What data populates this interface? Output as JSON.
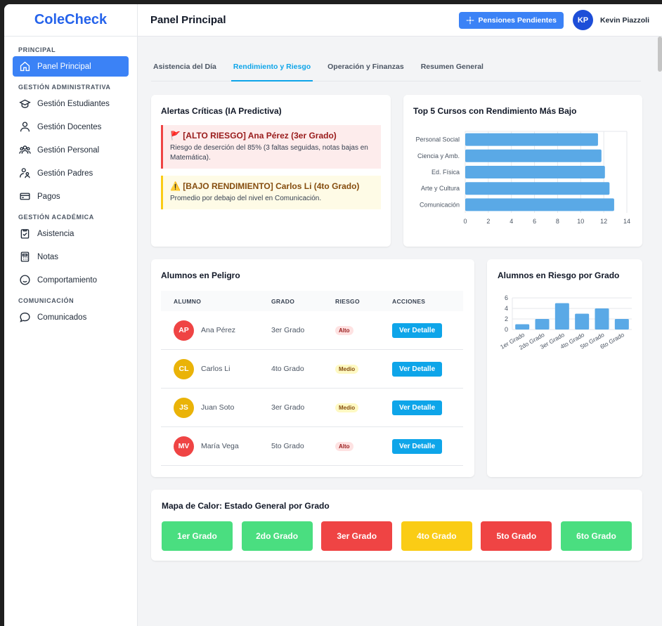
{
  "app": {
    "brand": "ColeCheck"
  },
  "sidebar": {
    "sections": [
      {
        "title": "PRINCIPAL",
        "items": [
          {
            "label": "Panel Principal",
            "icon": "home-icon",
            "active": true
          }
        ]
      },
      {
        "title": "GESTIÓN ADMINISTRATIVA",
        "items": [
          {
            "label": "Gestión Estudiantes",
            "icon": "school-icon"
          },
          {
            "label": "Gestión Docentes",
            "icon": "user-icon"
          },
          {
            "label": "Gestión Personal",
            "icon": "users-icon"
          },
          {
            "label": "Gestión Padres",
            "icon": "parent-icon"
          },
          {
            "label": "Pagos",
            "icon": "credit-card-icon"
          }
        ]
      },
      {
        "title": "GESTIÓN ACADÉMICA",
        "items": [
          {
            "label": "Asistencia",
            "icon": "clipboard-check-icon"
          },
          {
            "label": "Notas",
            "icon": "calculator-icon"
          },
          {
            "label": "Comportamiento",
            "icon": "smile-icon"
          }
        ]
      },
      {
        "title": "COMUNICACIÓN",
        "items": [
          {
            "label": "Comunicados",
            "icon": "chat-icon"
          }
        ]
      }
    ]
  },
  "header": {
    "title": "Panel Principal",
    "pending_button": "Pensiones Pendientes",
    "user_initials": "KP",
    "user_name": "Kevin Piazzoli"
  },
  "tabs": [
    {
      "label": "Asistencia del Día",
      "active": false
    },
    {
      "label": "Rendimiento y Riesgo",
      "active": true
    },
    {
      "label": "Operación y Finanzas",
      "active": false
    },
    {
      "label": "Resumen General",
      "active": false
    }
  ],
  "alerts": {
    "title": "Alertas Críticas (IA Predictiva)",
    "items": [
      {
        "level": "high",
        "icon": "🚩",
        "title": "[ALTO RIESGO] Ana Pérez (3er Grado)",
        "body": "Riesgo de deserción del 85% (3 faltas seguidas, notas bajas en Matemática)."
      },
      {
        "level": "low",
        "icon": "⚠️",
        "title": "[BAJO RENDIMIENTO] Carlos Li (4to Grado)",
        "body": "Promedio por debajo del nivel en Comunicación."
      }
    ]
  },
  "students": {
    "title": "Alumnos en Peligro",
    "columns": [
      "ALUMNO",
      "GRADO",
      "RIESGO",
      "ACCIONES"
    ],
    "rows": [
      {
        "initials": "AP",
        "name": "Ana Pérez",
        "grade": "3er Grado",
        "risk": "Alto",
        "avatar_color": "#ef4444",
        "action": "Ver Detalle"
      },
      {
        "initials": "CL",
        "name": "Carlos Li",
        "grade": "4to Grado",
        "risk": "Medio",
        "avatar_color": "#eab308",
        "action": "Ver Detalle"
      },
      {
        "initials": "JS",
        "name": "Juan Soto",
        "grade": "3er Grado",
        "risk": "Medio",
        "avatar_color": "#eab308",
        "action": "Ver Detalle"
      },
      {
        "initials": "MV",
        "name": "María Vega",
        "grade": "5to Grado",
        "risk": "Alto",
        "avatar_color": "#ef4444",
        "action": "Ver Detalle"
      }
    ]
  },
  "heatmap": {
    "title": "Mapa de Calor: Estado General por Grado",
    "cells": [
      {
        "label": "1er Grado",
        "color": "#4ade80"
      },
      {
        "label": "2do Grado",
        "color": "#4ade80"
      },
      {
        "label": "3er Grado",
        "color": "#ef4444"
      },
      {
        "label": "4to Grado",
        "color": "#facc15"
      },
      {
        "label": "5to Grado",
        "color": "#ef4444"
      },
      {
        "label": "6to Grado",
        "color": "#4ade80"
      }
    ]
  },
  "chart_data": [
    {
      "type": "bar",
      "orientation": "horizontal",
      "title": "Top 5 Cursos con Rendimiento Más Bajo",
      "categories": [
        "Personal Social",
        "Ciencia y Amb.",
        "Ed. Física",
        "Arte y Cultura",
        "Comunicación"
      ],
      "values": [
        11.5,
        11.8,
        12.1,
        12.5,
        12.9
      ],
      "xlim": [
        0,
        14
      ],
      "xticks": [
        "0",
        "2",
        "4",
        "6",
        "8",
        "10",
        "12",
        "14"
      ],
      "grid": true,
      "color": "#5aa9e6"
    },
    {
      "type": "bar",
      "title": "Alumnos en Riesgo por Grado",
      "categories": [
        "1er Grado",
        "2do Grado",
        "3er Grado",
        "4to Grado",
        "5to Grado",
        "6to Grado"
      ],
      "values": [
        1,
        2,
        5,
        3,
        4,
        2
      ],
      "ylim": [
        0,
        6
      ],
      "yticks": [
        "0",
        "2",
        "4",
        "6"
      ],
      "grid": true,
      "color": "#5aa9e6"
    }
  ]
}
